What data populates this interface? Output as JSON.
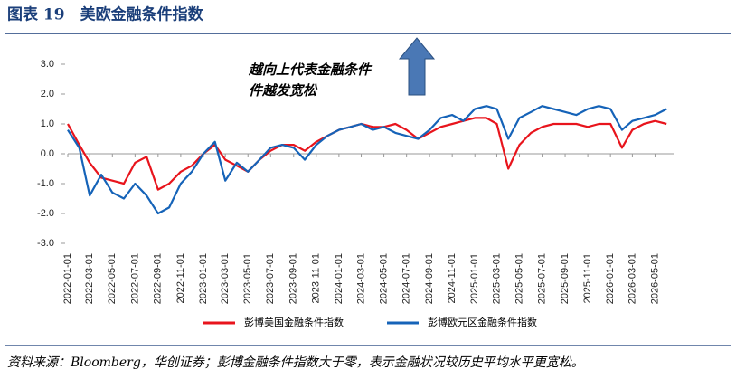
{
  "chart_data": {
    "type": "line",
    "title": "图表 19　美欧金融条件指数",
    "annotations": [
      "越向上代表金融条件",
      "件越发宽松"
    ],
    "source": "资料来源：Bloomberg，华创证券；彭博金融条件指数大于零，表示金融状况较历史平均水平更宽松。",
    "x": [
      "2022-01-01",
      "2022-02-01",
      "2022-03-01",
      "2022-04-01",
      "2022-05-01",
      "2022-06-01",
      "2022-07-01",
      "2022-08-01",
      "2022-09-01",
      "2022-10-01",
      "2022-11-01",
      "2022-12-01",
      "2023-01-01",
      "2023-02-01",
      "2023-03-01",
      "2023-04-01",
      "2023-05-01",
      "2023-06-01",
      "2023-07-01",
      "2023-08-01",
      "2023-09-01",
      "2023-10-01",
      "2023-11-01",
      "2023-12-01",
      "2024-01-01",
      "2024-02-01",
      "2024-03-01",
      "2024-04-01",
      "2024-05-01",
      "2024-06-01",
      "2024-07-01",
      "2024-08-01",
      "2024-09-01",
      "2024-10-01",
      "2024-11-01",
      "2024-12-01",
      "2025-01-01",
      "2025-02-01",
      "2025-03-01",
      "2025-04-01",
      "2025-05-01",
      "2025-06-01",
      "2025-07-01",
      "2025-08-01",
      "2025-09-01",
      "2025-10-01",
      "2025-11-01",
      "2025-12-01",
      "2026-01-01",
      "2026-02-01",
      "2026-03-01",
      "2026-04-01",
      "2026-05-01",
      "2026-06-01"
    ],
    "series": [
      {
        "name": "彭博美国金融条件指数",
        "color": "#e8141c",
        "values": [
          1.0,
          0.3,
          -0.3,
          -0.8,
          -0.9,
          -1.0,
          -0.3,
          -0.1,
          -1.2,
          -1.0,
          -0.6,
          -0.4,
          0.0,
          0.3,
          -0.2,
          -0.4,
          -0.6,
          -0.2,
          0.1,
          0.3,
          0.3,
          0.1,
          0.4,
          0.6,
          0.8,
          0.9,
          1.0,
          0.9,
          0.9,
          1.0,
          0.8,
          0.5,
          0.7,
          0.9,
          1.0,
          1.1,
          1.2,
          1.2,
          1.0,
          -0.5,
          0.3,
          0.7,
          0.9,
          1.0,
          1.0,
          1.0,
          0.9,
          1.0,
          1.0,
          0.2,
          0.8,
          1.0,
          1.1,
          1.0
        ]
      },
      {
        "name": "彭博欧元区金融条件指数",
        "color": "#1563b8",
        "values": [
          0.8,
          0.2,
          -1.4,
          -0.7,
          -1.3,
          -1.5,
          -1.0,
          -1.4,
          -2.0,
          -1.8,
          -1.0,
          -0.6,
          0.0,
          0.4,
          -0.9,
          -0.3,
          -0.6,
          -0.2,
          0.2,
          0.3,
          0.2,
          -0.2,
          0.3,
          0.6,
          0.8,
          0.9,
          1.0,
          0.8,
          0.9,
          0.7,
          0.6,
          0.5,
          0.8,
          1.2,
          1.3,
          1.1,
          1.5,
          1.6,
          1.5,
          0.5,
          1.2,
          1.4,
          1.6,
          1.5,
          1.4,
          1.3,
          1.5,
          1.6,
          1.5,
          0.8,
          1.1,
          1.2,
          1.3,
          1.5
        ]
      }
    ],
    "xlim": [
      "2022-01-01",
      "2026-06-20"
    ],
    "xticks": [
      "2022-01-01",
      "2022-03-01",
      "2022-05-01",
      "2022-07-01",
      "2022-09-01",
      "2022-11-01",
      "2023-01-01",
      "2023-03-01",
      "2023-05-01",
      "2023-07-01",
      "2023-09-01",
      "2023-11-01",
      "2024-01-01",
      "2024-03-01",
      "2024-05-01",
      "2024-07-01",
      "2024-09-01",
      "2024-11-01",
      "2025-01-01",
      "2025-03-01",
      "2025-05-01",
      "2025-07-01",
      "2025-09-01",
      "2025-11-01",
      "2026-01-01",
      "2026-03-01",
      "2026-05-01"
    ],
    "ylim": [
      -3,
      3
    ],
    "yticks": [
      {
        "value": 3,
        "label": "3.0"
      },
      {
        "value": 2,
        "label": "2.0"
      },
      {
        "value": 1,
        "label": "1.0"
      },
      {
        "value": 0,
        "label": "0.0"
      },
      {
        "value": -1,
        "label": "-1.0"
      },
      {
        "value": -2,
        "label": "-2.0"
      },
      {
        "value": -3,
        "label": "-3.0"
      }
    ],
    "legend": "bottom"
  }
}
